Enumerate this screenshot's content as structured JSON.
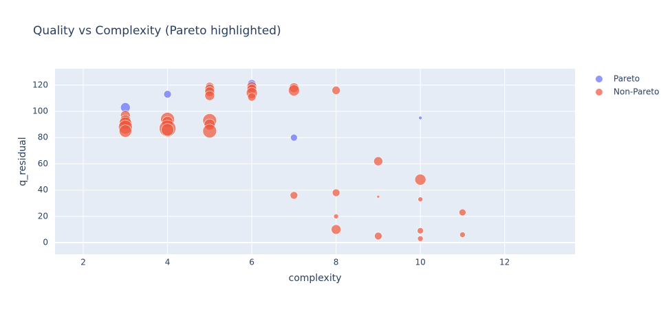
{
  "chart_data": {
    "type": "scatter",
    "title": "Quality vs Complexity (Pareto highlighted)",
    "x_label": "complexity",
    "y_label": "q_residual",
    "xlim": [
      1.33,
      13.67
    ],
    "ylim": [
      -8.9,
      132.5
    ],
    "xticks": [
      2,
      4,
      6,
      8,
      10,
      12
    ],
    "yticks": [
      0,
      20,
      40,
      60,
      80,
      100,
      120
    ],
    "grid": true,
    "series": [
      {
        "name": "Pareto",
        "color": "#636efa",
        "x": [
          3,
          4,
          6,
          7,
          10
        ],
        "values": [
          103,
          113,
          121,
          80,
          95
        ],
        "sizes": [
          14,
          11,
          12,
          10,
          5
        ]
      },
      {
        "name": "Non-Pareto",
        "color": "#ef553b",
        "x": [
          3,
          3,
          3,
          3,
          3,
          4,
          4,
          4,
          4,
          5,
          5,
          5,
          5,
          5,
          5,
          5,
          6,
          6,
          6,
          6,
          7,
          7,
          7,
          8,
          8,
          8,
          8,
          9,
          9,
          9,
          10,
          10,
          10,
          10,
          11,
          11
        ],
        "values": [
          97,
          93,
          91,
          88,
          85,
          94,
          92,
          87,
          86,
          119,
          117,
          115,
          112,
          93,
          90,
          85,
          119,
          117,
          114,
          111,
          118,
          116,
          36,
          116,
          38,
          20,
          10,
          62,
          35,
          5,
          48,
          33,
          9,
          3,
          23,
          6
        ],
        "sizes": [
          14,
          16,
          18,
          20,
          18,
          20,
          16,
          24,
          18,
          12,
          14,
          14,
          14,
          20,
          16,
          20,
          14,
          14,
          16,
          12,
          14,
          16,
          11,
          12,
          11,
          7,
          14,
          13,
          4,
          11,
          16,
          7,
          9,
          8,
          10,
          8
        ]
      }
    ]
  }
}
